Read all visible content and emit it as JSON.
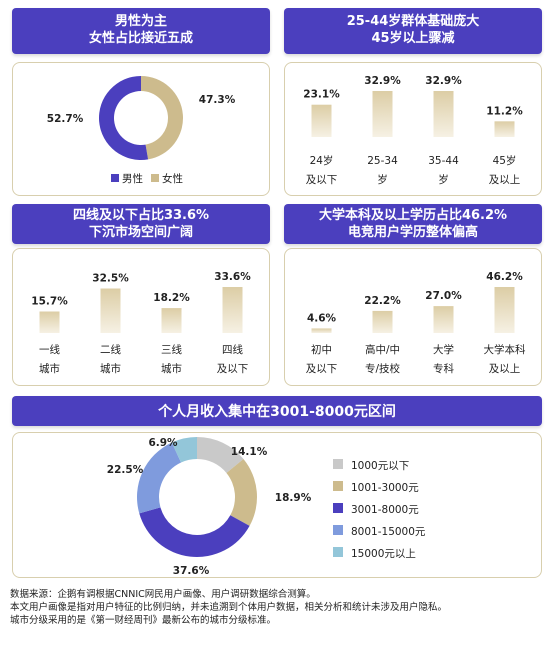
{
  "colors": {
    "purple": "#4b3fbe",
    "tan": "#cdbb8d",
    "gray": "#c9c9c9",
    "blue": "#7f9bdd",
    "light_blue": "#93c6d9",
    "bar_top": "#dccda5",
    "bar_bottom": "#f6f1e4"
  },
  "gender": {
    "title_line1": "男性为主",
    "title_line2": "女性占比接近五成"
  },
  "age": {
    "title_line1": "25-44岁群体基础庞大",
    "title_line2": "45岁以上骤减"
  },
  "city": {
    "title_line1": "四线及以下占比33.6%",
    "title_line2": "下沉市场空间广阔"
  },
  "edu": {
    "title_line1": "大学本科及以上学历占比46.2%",
    "title_line2": "电竞用户学历整体偏高"
  },
  "income": {
    "title": "个人月收入集中在3001-8000元区间"
  },
  "chart_data": [
    {
      "id": "gender",
      "type": "pie",
      "labels": [
        "男性",
        "女性"
      ],
      "values": [
        52.7,
        47.3
      ],
      "value_labels": [
        "52.7%",
        "47.3%"
      ],
      "colors": [
        "#4b3fbe",
        "#cdbb8d"
      ]
    },
    {
      "id": "age",
      "type": "bar",
      "categories": [
        [
          "24岁",
          "及以下"
        ],
        [
          "25-34",
          "岁"
        ],
        [
          "35-44",
          "岁"
        ],
        [
          "45岁",
          "及以上"
        ]
      ],
      "values": [
        23.1,
        32.9,
        32.9,
        11.2
      ],
      "value_labels": [
        "23.1%",
        "32.9%",
        "32.9%",
        "11.2%"
      ]
    },
    {
      "id": "city",
      "type": "bar",
      "categories": [
        [
          "一线",
          "城市"
        ],
        [
          "二线",
          "城市"
        ],
        [
          "三线",
          "城市"
        ],
        [
          "四线",
          "及以下"
        ]
      ],
      "values": [
        15.7,
        32.5,
        18.2,
        33.6
      ],
      "value_labels": [
        "15.7%",
        "32.5%",
        "18.2%",
        "33.6%"
      ]
    },
    {
      "id": "edu",
      "type": "bar",
      "categories": [
        [
          "初中",
          "及以下"
        ],
        [
          "高中/中",
          "专/技校"
        ],
        [
          "大学",
          "专科"
        ],
        [
          "大学本科",
          "及以上"
        ]
      ],
      "values": [
        4.6,
        22.2,
        27.0,
        46.2
      ],
      "value_labels": [
        "4.6%",
        "22.2%",
        "27.0%",
        "46.2%"
      ]
    },
    {
      "id": "income",
      "type": "pie",
      "labels": [
        "1000元以下",
        "1001-3000元",
        "3001-8000元",
        "8001-15000元",
        "15000元以上"
      ],
      "values": [
        14.1,
        18.9,
        37.6,
        22.5,
        6.9
      ],
      "value_labels": [
        "14.1%",
        "18.9%",
        "37.6%",
        "22.5%",
        "6.9%"
      ],
      "colors": [
        "#c9c9c9",
        "#cdbb8d",
        "#4b3fbe",
        "#7f9bdd",
        "#93c6d9"
      ]
    }
  ],
  "footnotes": {
    "line1": "数据来源：企鹅有调根据CNNIC网民用户画像、用户调研数据综合测算。",
    "line2": "本文用户画像是指对用户特征的比例归纳，并未追溯到个体用户数据，相关分析和统计未涉及用户隐私。",
    "line3": "城市分级采用的是《第一财经周刊》最新公布的城市分级标准。"
  }
}
